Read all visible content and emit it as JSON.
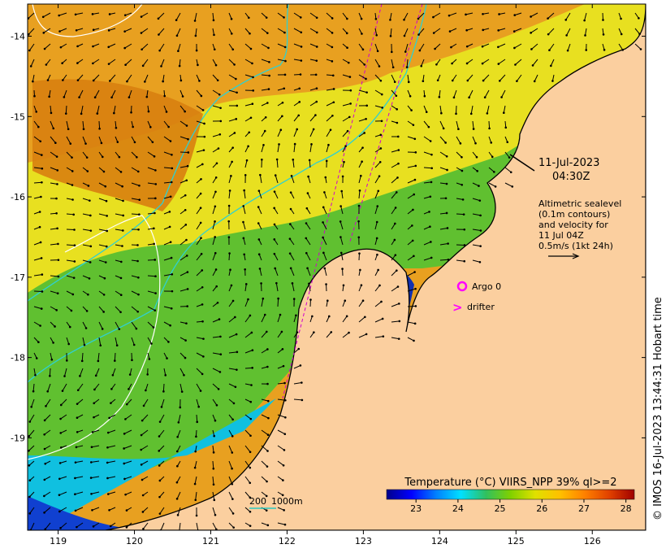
{
  "map": {
    "lon_range": [
      118.6,
      126.7
    ],
    "lat_range": [
      -20.15,
      -13.6
    ],
    "lon_ticks": [
      119,
      120,
      121,
      122,
      123,
      124,
      125,
      126
    ],
    "lat_ticks": [
      -14,
      -15,
      -16,
      -17,
      -18,
      -19
    ],
    "lon_tick_labels": [
      "119",
      "120",
      "121",
      "122",
      "123",
      "124",
      "125",
      "126"
    ],
    "lat_tick_labels": [
      "-14",
      "-15",
      "-16",
      "-17",
      "-18",
      "-19"
    ]
  },
  "date_line1": "11-Jul-2023",
  "date_line2": "04:30Z",
  "altimetry_note": [
    "Altimetric sealevel",
    "(0.1m contours)",
    "and velocity for",
    "11 Jul 04Z",
    "0.5m/s (1kt 24h)"
  ],
  "legend": {
    "argo_label": "Argo 0",
    "drifter_label": "drifter",
    "argo_color": "#ff00ff",
    "drifter_color": "#ff00ff"
  },
  "scale_legend": {
    "label_200": "200",
    "label_1000": "1000m",
    "line_color": "#00c8c8"
  },
  "colorbar": {
    "title": "Temperature (°C) VIIRS_NPP 39% ql>=2",
    "tick_labels": [
      "23",
      "24",
      "25",
      "26",
      "27",
      "28"
    ],
    "ticks": [
      23,
      24,
      25,
      26,
      27,
      28
    ],
    "range": [
      22.3,
      28.2
    ],
    "colors": [
      "#00008b",
      "#0000ff",
      "#0080ff",
      "#00e0ff",
      "#30c060",
      "#80d000",
      "#e0e000",
      "#ffc000",
      "#ff8000",
      "#e04000",
      "#a00000"
    ]
  },
  "credit": "© IMOS 16-Jul-2023 13:44:31 Hobart time",
  "colors": {
    "land": "#fbcf9f",
    "coast": "#000000",
    "isobath": "#30d0d0",
    "contour": "#ffffff",
    "track": "#d000d0"
  }
}
